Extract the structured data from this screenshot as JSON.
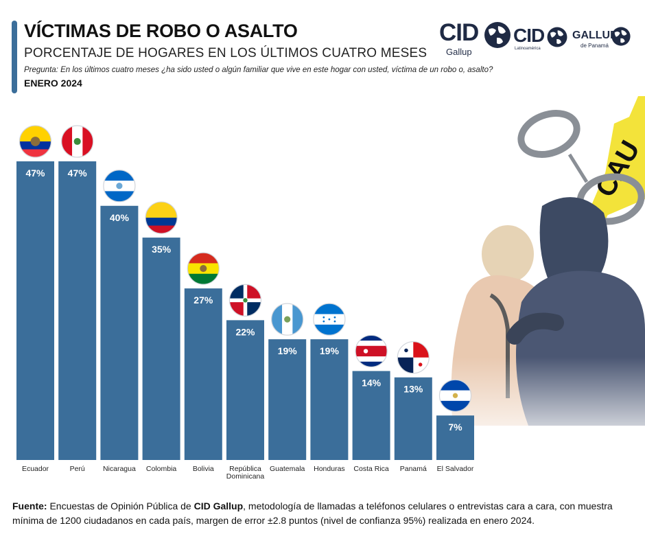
{
  "header": {
    "title": "VÍCTIMAS DE ROBO O ASALTO",
    "subtitle": "PORCENTAJE DE HOGARES EN LOS ÚLTIMOS CUATRO MESES",
    "question": "Pregunta: En los últimos cuatro meses ¿ha sido usted o algún familiar que vive en este hogar con usted, víctima de un robo o, asalto?",
    "date": "ENERO 2024"
  },
  "logos": {
    "cid_gallup": {
      "brand": "CID",
      "sub": "Gallup"
    },
    "cid_latinoamerica": {
      "brand": "CID",
      "sub": "Latinoamérica"
    },
    "gallup_panama": {
      "brand": "GALLUP",
      "sub": "de Panamá"
    }
  },
  "chart_data": {
    "type": "bar",
    "title": "VÍCTIMAS DE ROBO O ASALTO",
    "unit": "%",
    "ylim": [
      0,
      50
    ],
    "grid": false,
    "bar_color": "#3b6e9a",
    "categories": [
      "Ecuador",
      "Perú",
      "Nicaragua",
      "Colombia",
      "Bolivia",
      "República Dominicana",
      "Guatemala",
      "Honduras",
      "Costa Rica",
      "Panamá",
      "El Salvador"
    ],
    "values": [
      47,
      47,
      40,
      35,
      27,
      22,
      19,
      19,
      14,
      13,
      7
    ],
    "value_labels": [
      "47%",
      "47%",
      "40%",
      "35%",
      "27%",
      "22%",
      "19%",
      "19%",
      "14%",
      "13%",
      "7%"
    ],
    "flags": [
      "ecuador-flag-icon",
      "peru-flag-icon",
      "nicaragua-flag-icon",
      "colombia-flag-icon",
      "bolivia-flag-icon",
      "dominican-republic-flag-icon",
      "guatemala-flag-icon",
      "honduras-flag-icon",
      "costa-rica-flag-icon",
      "panama-flag-icon",
      "el-salvador-flag-icon"
    ]
  },
  "illustration": {
    "caution_tape_text": "CAU"
  },
  "source": {
    "label": "Fuente:",
    "text_before": " Encuestas de Opinión Pública de ",
    "brand": "CID Gallup",
    "text_after": ", metodología de llamadas a teléfonos celulares o entrevistas cara a cara, con muestra mínima de 1200 ciudadanos en cada país, margen de error ±2.8 puntos (nivel de confianza 95%) realizada en enero 2024."
  }
}
